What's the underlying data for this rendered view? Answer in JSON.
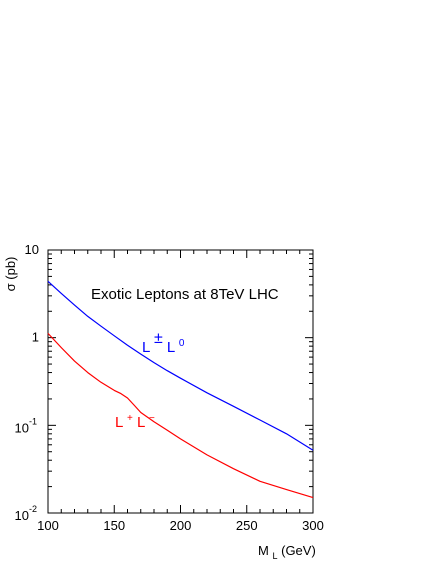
{
  "chart_data": {
    "type": "line",
    "title": "Exotic Leptons at 8TeV LHC",
    "xlabel": {
      "main": "M",
      "sub": "L",
      "unit": " (GeV)"
    },
    "ylabel": "σ (pb)",
    "xlim": [
      100,
      300
    ],
    "ylim": [
      0.01,
      10
    ],
    "yscale": "log",
    "grid": false,
    "x_ticks": [
      "100",
      "150",
      "200",
      "250",
      "300"
    ],
    "y_ticks": [
      {
        "value": 10,
        "base": "10",
        "exp": ""
      },
      {
        "value": 1,
        "base": "1",
        "exp": ""
      },
      {
        "value": 0.1,
        "base": "10",
        "exp": "-1"
      },
      {
        "value": 0.01,
        "base": "10",
        "exp": "-2"
      }
    ],
    "series": [
      {
        "label_parts": [
          "L",
          "±",
          "L",
          "0"
        ],
        "color": "#0000ff",
        "x": [
          100,
          110,
          120,
          130,
          140,
          150,
          160,
          170,
          180,
          190,
          200,
          220,
          240,
          260,
          280,
          300
        ],
        "y": [
          4.4,
          3.2,
          2.35,
          1.75,
          1.35,
          1.05,
          0.82,
          0.65,
          0.52,
          0.42,
          0.345,
          0.235,
          0.165,
          0.115,
          0.08,
          0.052
        ]
      },
      {
        "label_parts": [
          "L",
          "+",
          "L",
          "−"
        ],
        "color": "#ff0000",
        "x": [
          100,
          110,
          120,
          130,
          140,
          150,
          155,
          160,
          165,
          170,
          180,
          190,
          200,
          220,
          240,
          260,
          280,
          300
        ],
        "y": [
          1.12,
          0.77,
          0.54,
          0.4,
          0.31,
          0.25,
          0.23,
          0.205,
          0.17,
          0.14,
          0.11,
          0.088,
          0.07,
          0.046,
          0.032,
          0.023,
          0.0185,
          0.015
        ]
      }
    ]
  }
}
